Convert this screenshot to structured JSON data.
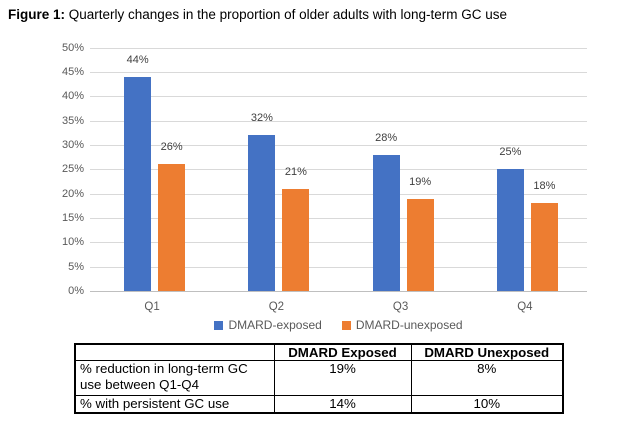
{
  "figure_title": {
    "prefix": "Figure 1:",
    "text": " Quarterly changes in the proportion of older adults with long-term GC use"
  },
  "chart_data": {
    "type": "bar",
    "title": "Quarterly changes in the proportion of older adults with long-term GC use",
    "categories": [
      "Q1",
      "Q2",
      "Q3",
      "Q4"
    ],
    "series": [
      {
        "name": "DMARD-exposed",
        "color": "#4472C4",
        "values": [
          44,
          32,
          28,
          25
        ],
        "labels": [
          "44%",
          "32%",
          "28%",
          "25%"
        ]
      },
      {
        "name": "DMARD-unexposed",
        "color": "#ED7D31",
        "values": [
          26,
          21,
          19,
          18
        ],
        "labels": [
          "26%",
          "21%",
          "19%",
          "18%"
        ]
      }
    ],
    "xlabel": "",
    "ylabel": "",
    "ylim": [
      0,
      50
    ],
    "ytick_step": 5,
    "ytick_labels": [
      "0%",
      "5%",
      "10%",
      "15%",
      "20%",
      "25%",
      "30%",
      "35%",
      "40%",
      "45%",
      "50%"
    ],
    "grid": true,
    "legend_position": "bottom"
  },
  "summary_table": {
    "headers": [
      "",
      "DMARD Exposed",
      "DMARD Unexposed"
    ],
    "rows": [
      {
        "label": "% reduction in long-term GC use between Q1-Q4",
        "values": [
          "19%",
          "8%"
        ]
      },
      {
        "label": "% with persistent GC use",
        "values": [
          "14%",
          "10%"
        ]
      }
    ]
  },
  "colors": {
    "series_exposed": "#4472C4",
    "series_unexposed": "#ED7D31",
    "gridline": "#D9D9D9",
    "axis_line": "#BFBFBF",
    "tick_label": "#595959",
    "data_label": "#404040",
    "table_border": "#000000"
  }
}
